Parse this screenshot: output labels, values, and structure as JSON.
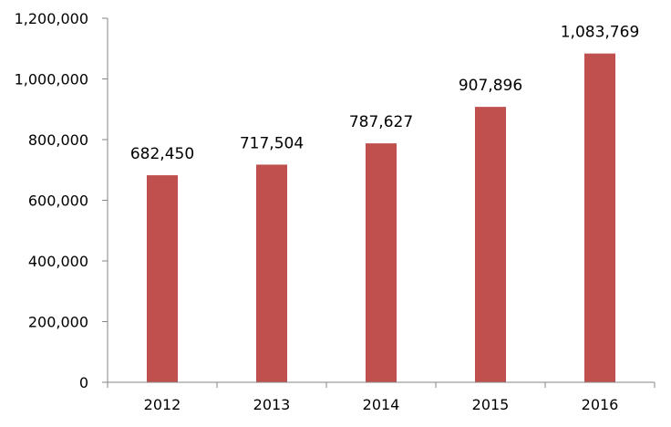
{
  "chart_data": {
    "type": "bar",
    "title": "",
    "xlabel": "",
    "ylabel": "",
    "categories": [
      "2012",
      "2013",
      "2014",
      "2015",
      "2016"
    ],
    "values": [
      682450,
      717504,
      787627,
      907896,
      1083769
    ],
    "data_labels": [
      "682,450",
      "717,504",
      "787,627",
      "907,896",
      "1,083,769"
    ],
    "ylim": [
      0,
      1200000
    ],
    "y_ticks": [
      0,
      200000,
      400000,
      600000,
      800000,
      1000000,
      1200000
    ],
    "y_tick_labels": [
      "0",
      "200,000",
      "400,000",
      "600,000",
      "800,000",
      "1,000,000",
      "1,200,000"
    ],
    "grid": false,
    "legend": "none",
    "colors": {
      "bar": "#c0504d",
      "axis": "#868686"
    }
  }
}
